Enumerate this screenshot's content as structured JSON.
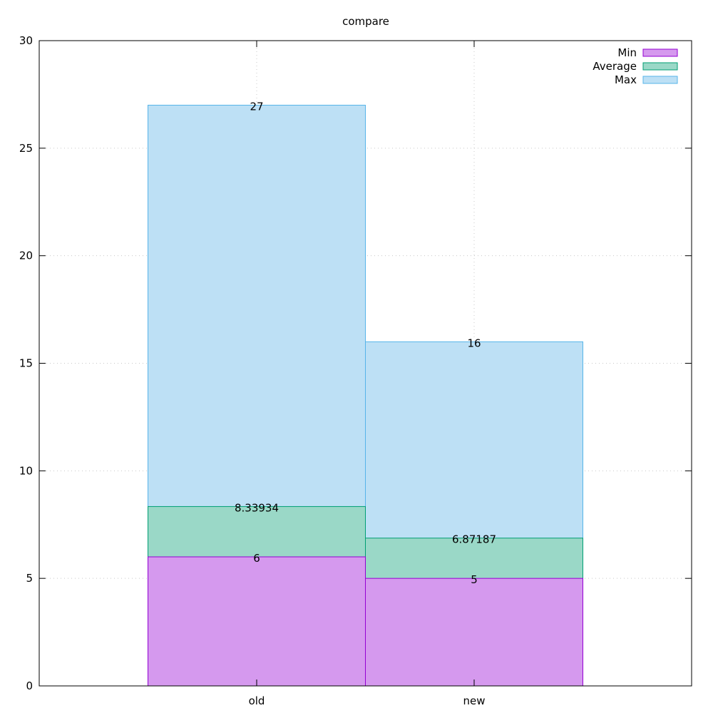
{
  "chart_data": {
    "type": "bar",
    "title": "compare",
    "xlabel": "",
    "ylabel": "",
    "categories": [
      "old",
      "new"
    ],
    "ylim": [
      0,
      30
    ],
    "yticks": [
      0,
      5,
      10,
      15,
      20,
      25,
      30
    ],
    "grid": true,
    "legend_position": "top-right",
    "overlap": true,
    "series": [
      {
        "name": "Max",
        "values": [
          27,
          16
        ],
        "labels": [
          "27",
          "16"
        ],
        "fill": "#bde0f5",
        "stroke": "#56b4e9"
      },
      {
        "name": "Average",
        "values": [
          8.33934,
          6.87187
        ],
        "labels": [
          "8.33934",
          "6.87187"
        ],
        "fill": "#9ad8c7",
        "stroke": "#009e73"
      },
      {
        "name": "Min",
        "values": [
          6,
          5
        ],
        "labels": [
          "6",
          "5"
        ],
        "fill": "#d599ee",
        "stroke": "#9400d3"
      }
    ],
    "legend_order": [
      "Min",
      "Average",
      "Max"
    ]
  }
}
